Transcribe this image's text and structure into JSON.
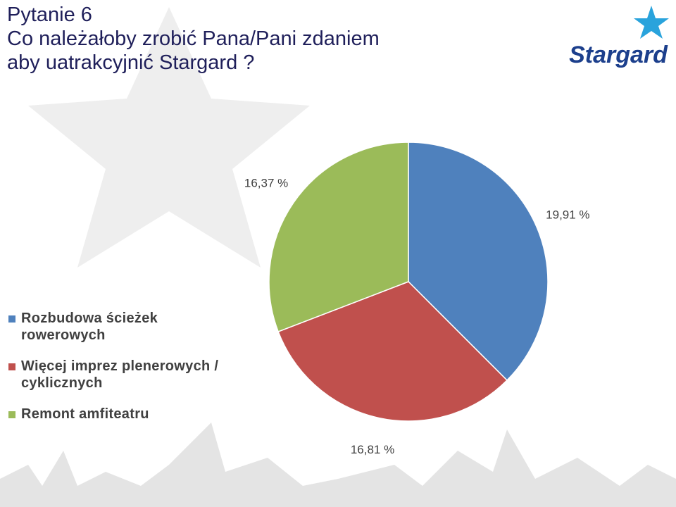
{
  "chart_data": {
    "type": "pie",
    "title": "Pytanie 6",
    "subtitle_lines": [
      "Co należałoby zrobić Pana/Pani zdaniem",
      "aby uatrakcyjnić Stargard ?"
    ],
    "logo": "Stargard",
    "categories": [
      "Rozbudowa ścieżek rowerowych",
      "Więcej imprez plenerowych / cyklicznych",
      "Remont amfiteatru"
    ],
    "values": [
      19.91,
      16.81,
      16.37
    ],
    "value_labels": [
      "19,91 %",
      "16,81 %",
      "16,37 %"
    ],
    "colors": [
      "#4f81bd",
      "#c0504d",
      "#9bbb59"
    ],
    "legend": "left"
  }
}
